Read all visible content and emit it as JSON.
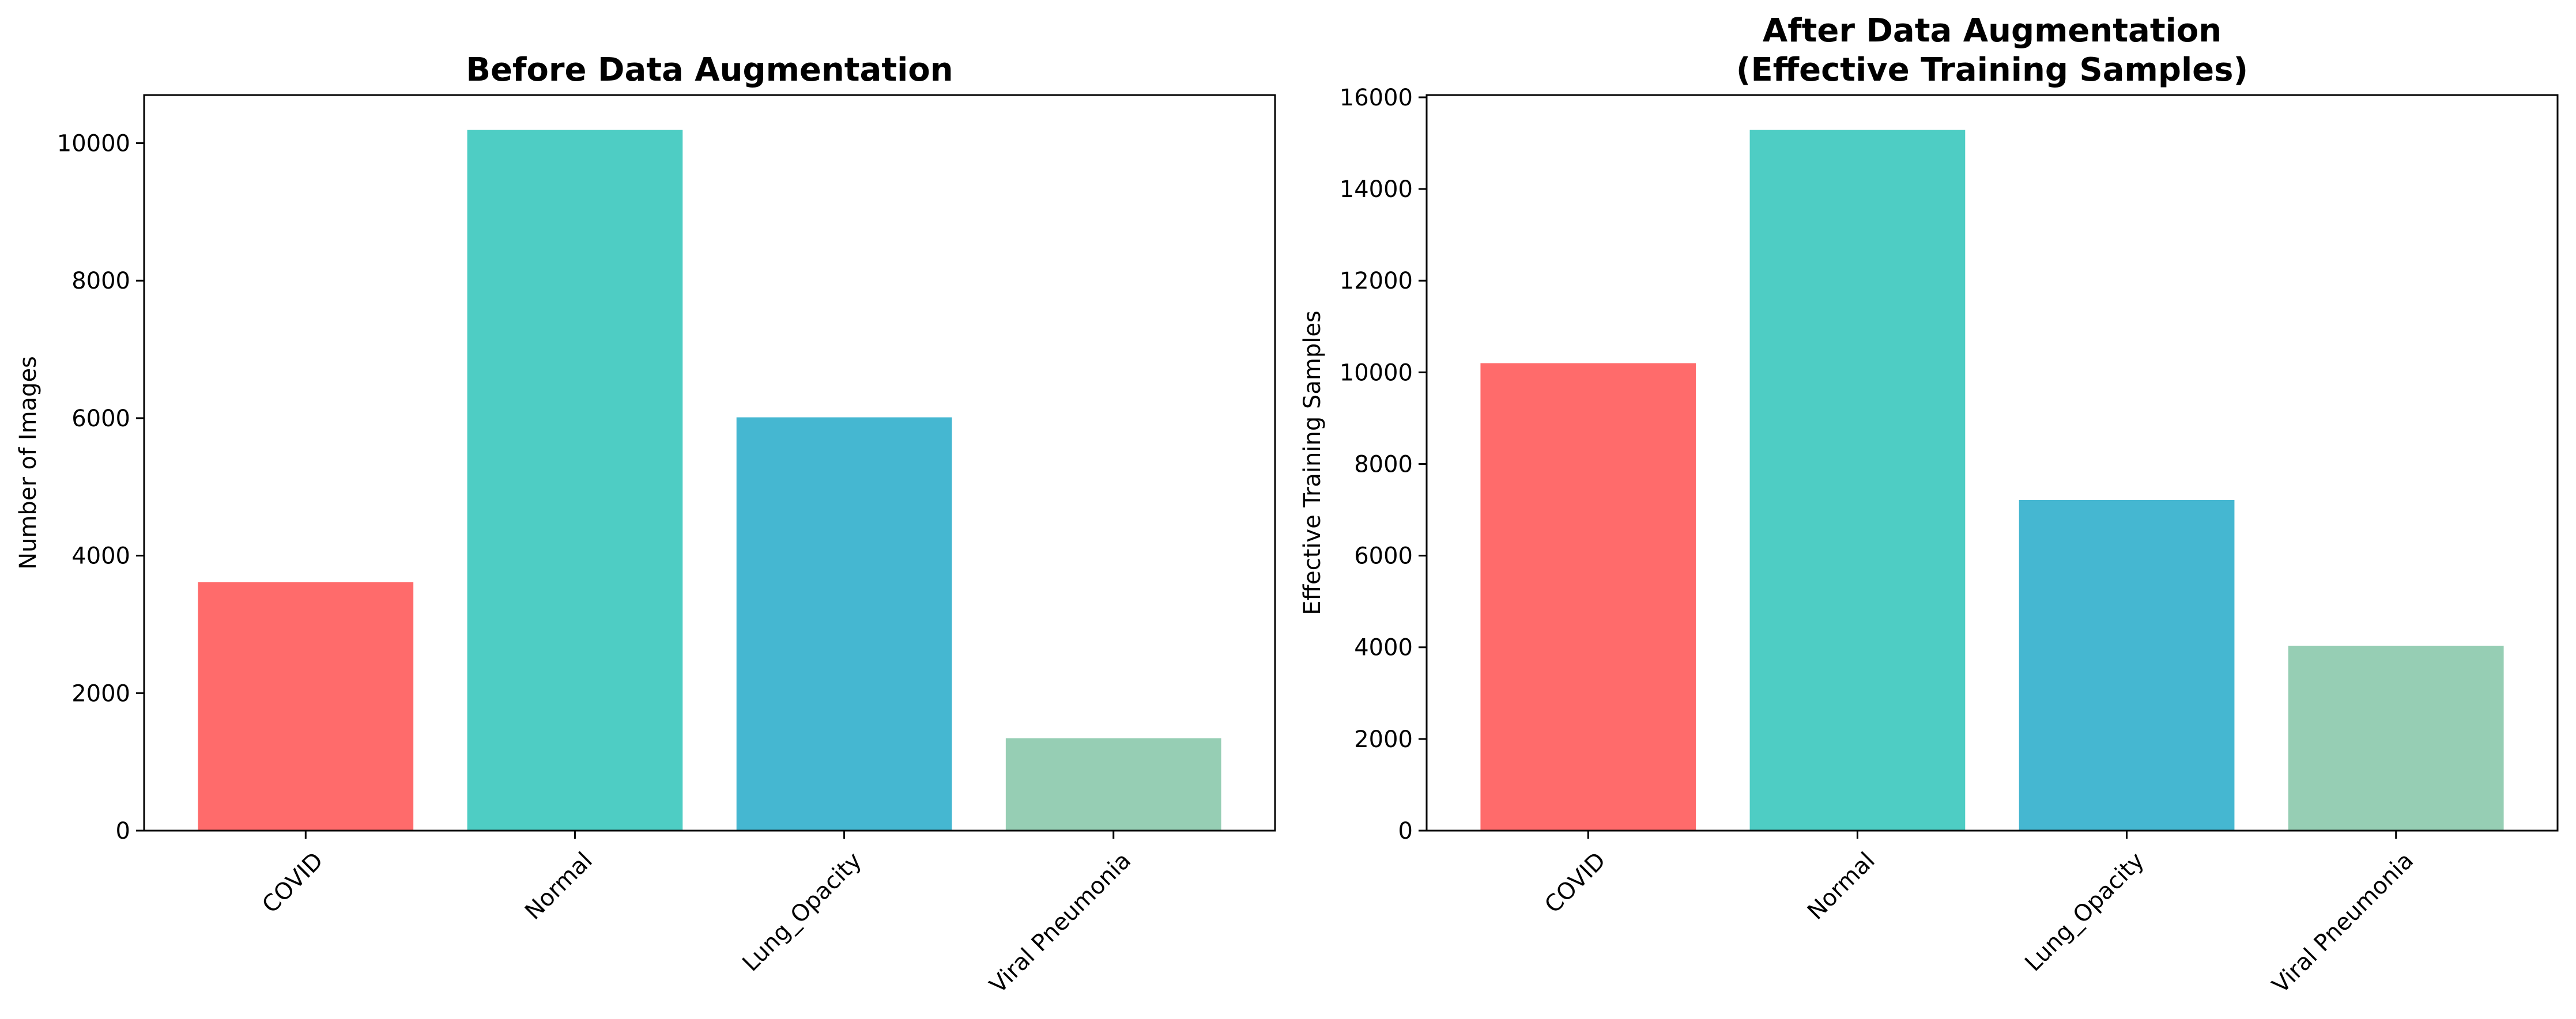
{
  "chart_data": [
    {
      "type": "bar",
      "title": "Before Data Augmentation",
      "xlabel": "",
      "ylabel": "Number of Images",
      "categories": [
        "COVID",
        "Normal",
        "Lung_Opacity",
        "Viral Pneumonia"
      ],
      "values": [
        3616,
        10192,
        6012,
        1345
      ],
      "colors": [
        "#ff6b6b",
        "#4ecdc4",
        "#45b7d1",
        "#96ceb4"
      ],
      "ylim": [
        0,
        10700
      ],
      "yticks": [
        0,
        2000,
        4000,
        6000,
        8000,
        10000
      ],
      "grid": false
    },
    {
      "type": "bar",
      "title": "After Data Augmentation\n(Effective Training Samples)",
      "title_lines": [
        "After Data Augmentation",
        "(Effective Training Samples)"
      ],
      "xlabel": "",
      "ylabel": "Effective Training Samples",
      "categories": [
        "COVID",
        "Normal",
        "Lung_Opacity",
        "Viral Pneumonia"
      ],
      "values": [
        10200,
        15288,
        7214,
        4035
      ],
      "colors": [
        "#ff6b6b",
        "#4ecdc4",
        "#45b7d1",
        "#96ceb4"
      ],
      "ylim": [
        0,
        16050
      ],
      "yticks": [
        0,
        2000,
        4000,
        6000,
        8000,
        10000,
        12000,
        14000,
        16000
      ],
      "grid": false
    }
  ]
}
